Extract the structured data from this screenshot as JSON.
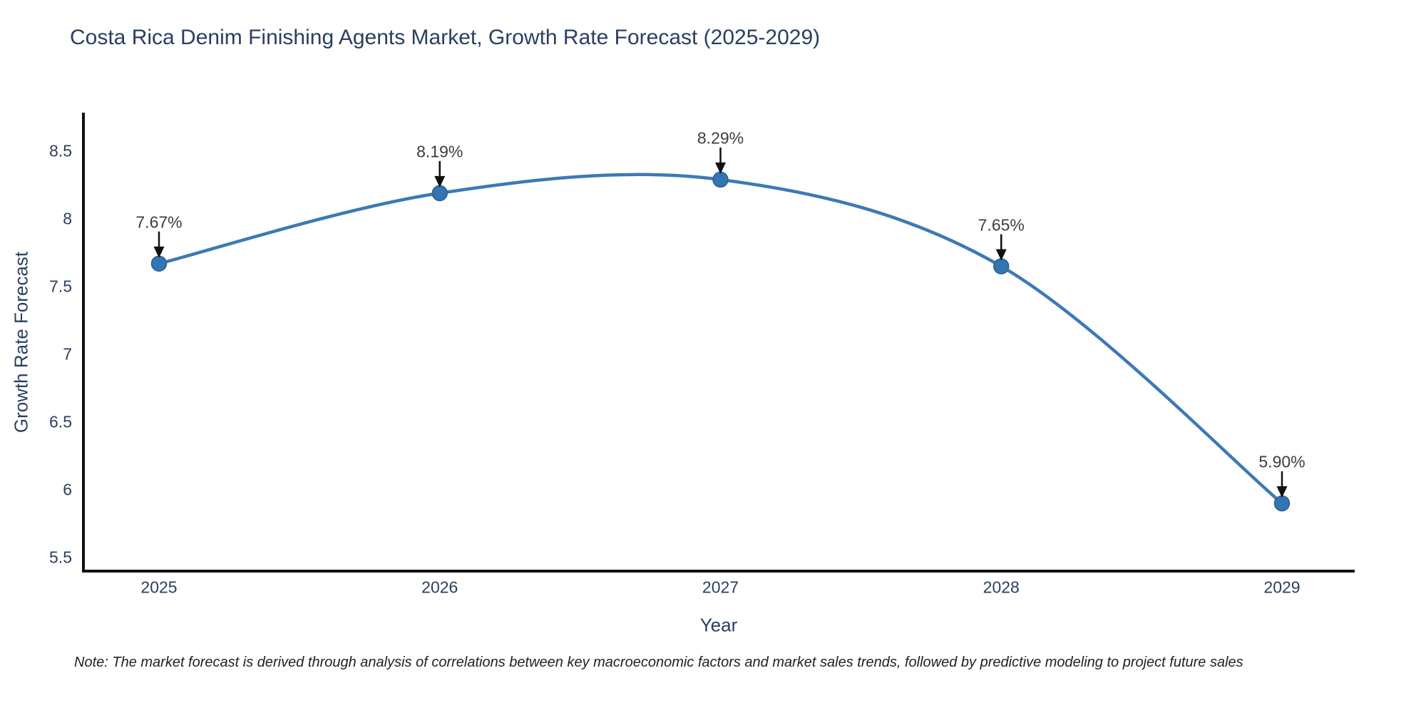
{
  "chart_data": {
    "type": "line",
    "title": "Costa Rica Denim Finishing Agents Market, Growth Rate Forecast (2025-2029)",
    "xlabel": "Year",
    "ylabel": "Growth Rate Forecast",
    "x": [
      2025,
      2026,
      2027,
      2028,
      2029
    ],
    "x_tick_labels": [
      "2025",
      "2026",
      "2027",
      "2028",
      "2029"
    ],
    "y": [
      7.67,
      8.19,
      8.29,
      7.65,
      5.9
    ],
    "point_labels": [
      "7.67%",
      "8.19%",
      "8.29%",
      "7.65%",
      "5.90%"
    ],
    "y_ticks": [
      5.5,
      6,
      6.5,
      7,
      7.5,
      8,
      8.5
    ],
    "y_tick_labels": [
      "5.5",
      "6",
      "6.5",
      "7",
      "7.5",
      "8",
      "8.5"
    ],
    "ylim": [
      5.39,
      8.77
    ],
    "grid": false,
    "legend": "none",
    "line_shape": "spline",
    "note": "Note: The market forecast is derived through analysis of correlations between key macroeconomic factors and market sales trends, followed by predictive modeling to project future sales",
    "colors": {
      "line": "#3d79b5",
      "marker_fill": "#3474b1",
      "marker_edge": "#2c5f92",
      "axis": "#111111",
      "arrow": "#111111",
      "title_text": "#2a3f5f",
      "tick_text": "#2a3f5f",
      "annotation_text": "#3d3d3d",
      "note_text": "#222222",
      "background": "#ffffff"
    }
  }
}
